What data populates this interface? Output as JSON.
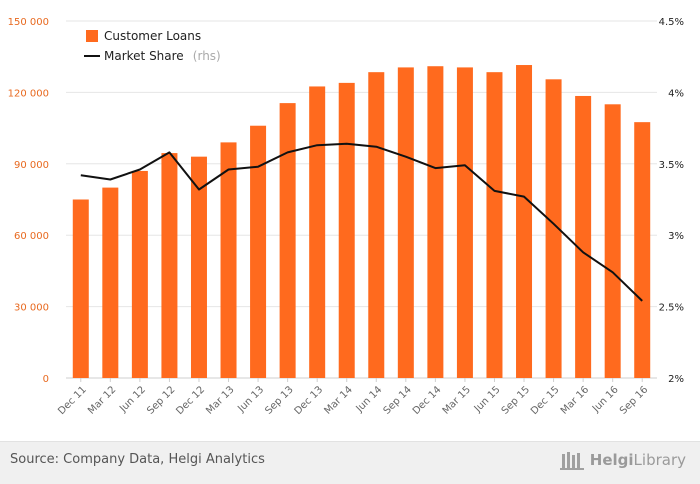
{
  "chart_data": {
    "type": "bar",
    "categories": [
      "Dec 11",
      "Mar 12",
      "Jun 12",
      "Sep 12",
      "Dec 12",
      "Mar 13",
      "Jun 13",
      "Sep 13",
      "Dec 13",
      "Mar 14",
      "Jun 14",
      "Sep 14",
      "Dec 14",
      "Mar 15",
      "Jun 15",
      "Sep 15",
      "Dec 15",
      "Mar 16",
      "Jun 16",
      "Sep 16"
    ],
    "series": [
      {
        "name": "Customer Loans",
        "type": "bar",
        "axis": "left",
        "color": "#ff6a1e",
        "values": [
          75000,
          80000,
          87000,
          94500,
          93000,
          99000,
          106000,
          115500,
          122500,
          124000,
          128500,
          130500,
          131000,
          130500,
          128500,
          131500,
          125500,
          118500,
          115000,
          107500
        ]
      },
      {
        "name": "Market Share",
        "name_suffix": "(rhs)",
        "type": "line",
        "axis": "right",
        "color": "#111111",
        "values": [
          3.42,
          3.39,
          3.46,
          3.58,
          3.32,
          3.46,
          3.48,
          3.58,
          3.63,
          3.64,
          3.62,
          3.55,
          3.47,
          3.49,
          3.31,
          3.27,
          3.08,
          2.88,
          2.74,
          2.54
        ]
      }
    ],
    "left_axis": {
      "ylim": [
        0,
        150000
      ],
      "ticks": [
        0,
        30000,
        60000,
        90000,
        120000,
        150000
      ],
      "tick_labels": [
        "0",
        "30 000",
        "60 000",
        "90 000",
        "120 000",
        "150 000"
      ],
      "color": "#e8691f"
    },
    "right_axis": {
      "ylim": [
        2,
        4.5
      ],
      "ticks": [
        2,
        2.5,
        3,
        3.5,
        4,
        4.5
      ],
      "tick_labels": [
        "2%",
        "2.5%",
        "3%",
        "3.5%",
        "4%",
        "4.5%"
      ]
    },
    "grid": true,
    "legend_position": "top-left",
    "title": "",
    "xlabel": "",
    "ylabel": ""
  },
  "footer": {
    "source": "Source: Company Data, Helgi Analytics",
    "brand_strong": "Helgi",
    "brand_rest": "Library"
  }
}
